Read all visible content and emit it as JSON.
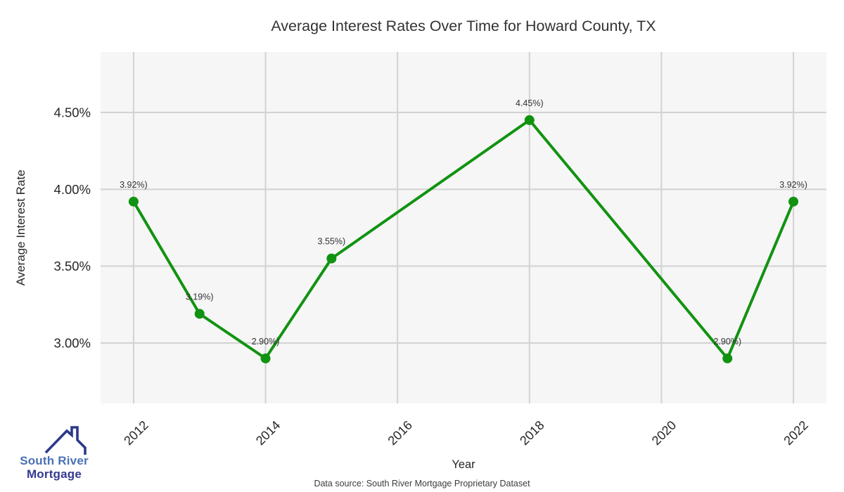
{
  "title": "Average Interest Rates Over Time for Howard County, TX",
  "axes": {
    "x_label": "Year",
    "y_label": "Average Interest Rate"
  },
  "footer": {
    "source": "Data source: South River Mortgage Proprietary Dataset"
  },
  "logo": {
    "line1": "South River",
    "line2": "Mortgage",
    "line1_color": "#4a71b5",
    "line2_color": "#333a90",
    "house_color": "#2c3a8a"
  },
  "chart_data": {
    "type": "line",
    "title": "Average Interest Rates Over Time for Howard County, TX",
    "xlabel": "Year",
    "ylabel": "Average Interest Rate",
    "x": [
      2012,
      2013,
      2014,
      2015,
      2018,
      2021,
      2022
    ],
    "values": [
      3.92,
      3.19,
      2.9,
      3.55,
      4.45,
      2.9,
      3.92
    ],
    "point_labels": [
      "3.92%)",
      "3.19%)",
      "2.90%)",
      "3.55%)",
      "4.45%)",
      "2.90%)",
      "3.92%)"
    ],
    "x_ticks": [
      2012,
      2014,
      2016,
      2018,
      2020,
      2022
    ],
    "x_tick_labels": [
      "2012",
      "2014",
      "2016",
      "2018",
      "2020",
      "2022"
    ],
    "y_ticks": [
      4.5,
      4.0,
      3.5,
      3.0
    ],
    "y_tick_labels": [
      "4.50%",
      "4.00%",
      "3.50%",
      "3.00%"
    ],
    "xlim": [
      2011.5,
      2022.5
    ],
    "ylim": [
      2.607,
      4.893
    ],
    "grid": true,
    "legend": null,
    "line_color": "#119311",
    "marker_color": "#119311",
    "plot_bg_color": "#f6f6f6",
    "grid_color": "#d2d2d2",
    "tick_label_color": "#262626",
    "point_label_color": "#333333"
  }
}
